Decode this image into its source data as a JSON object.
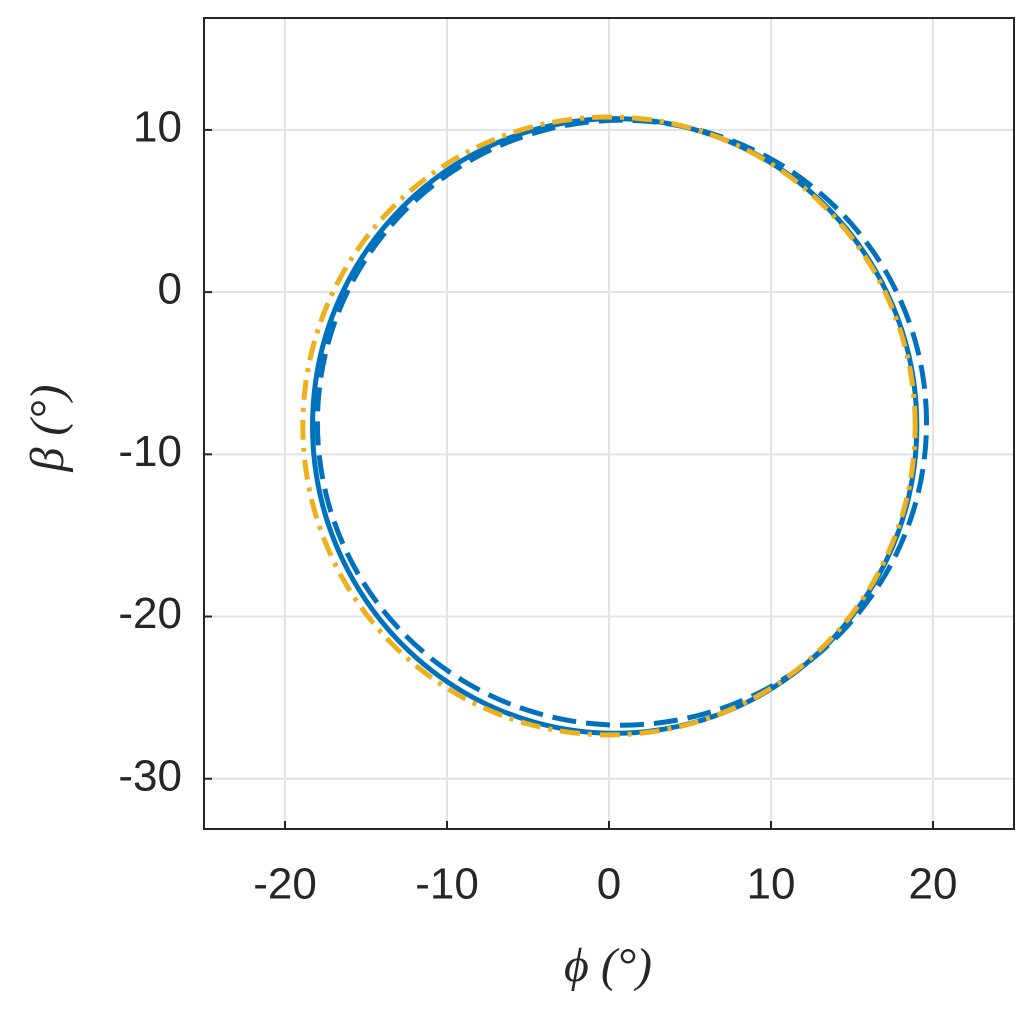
{
  "chart_data": {
    "type": "line",
    "x_label": "ϕ (°)",
    "y_label": "β (°)",
    "xlim": [
      -25,
      25
    ],
    "xticks": [
      -20,
      -10,
      0,
      10,
      20
    ],
    "ylim": [
      -33.1,
      16.9
    ],
    "yticks": [
      -30,
      -20,
      -10,
      0,
      10
    ],
    "grid": true,
    "series": [
      {
        "color": "#0072bd",
        "style": "solid",
        "x": [
          19.0,
          18.37,
          16.5,
          13.54,
          9.68,
          5.18,
          0.35,
          -4.48,
          -8.98,
          -12.84,
          -15.8,
          -17.67,
          -18.3,
          -17.67,
          -15.8,
          -12.84,
          -8.98,
          -4.48,
          0.35,
          5.18,
          9.68,
          13.54,
          16.5,
          18.37,
          19.0
        ],
        "values": [
          -8.25,
          -3.34,
          1.23,
          5.15,
          8.16,
          10.05,
          10.7,
          10.05,
          8.16,
          5.15,
          1.23,
          -3.34,
          -8.25,
          -13.16,
          -17.73,
          -21.65,
          -24.66,
          -26.55,
          -27.2,
          -26.55,
          -24.66,
          -21.65,
          -17.73,
          -13.16,
          -8.25
        ]
      },
      {
        "color": "#0072bd",
        "style": "dashed",
        "x": [
          19.6,
          18.96,
          17.08,
          14.09,
          10.2,
          5.67,
          0.8,
          -4.07,
          -8.6,
          -12.49,
          -15.48,
          -17.36,
          -18.0,
          -17.36,
          -15.48,
          -12.49,
          -8.6,
          -4.07,
          0.8,
          5.67,
          10.2,
          14.09,
          17.08,
          18.96,
          19.6
        ],
        "values": [
          -8.05,
          -3.22,
          1.28,
          5.14,
          8.1,
          9.96,
          10.6,
          9.96,
          8.1,
          5.14,
          1.28,
          -3.22,
          -8.05,
          -12.88,
          -17.38,
          -21.24,
          -24.2,
          -26.06,
          -26.7,
          -26.06,
          -24.2,
          -21.24,
          -17.38,
          -12.88,
          -8.05
        ]
      },
      {
        "color": "#edb120",
        "style": "dashdot",
        "x": [
          18.9,
          18.26,
          16.37,
          13.36,
          9.45,
          4.9,
          0,
          -4.9,
          -9.45,
          -13.36,
          -16.37,
          -18.26,
          -18.9,
          -18.26,
          -16.37,
          -13.36,
          -9.45,
          -4.9,
          0,
          4.9,
          9.45,
          13.36,
          16.37,
          18.26,
          18.9
        ],
        "values": [
          -8.25,
          -3.32,
          1.28,
          5.22,
          8.25,
          10.15,
          10.8,
          10.15,
          8.25,
          5.22,
          1.28,
          -3.32,
          -8.25,
          -13.18,
          -17.78,
          -21.72,
          -24.75,
          -26.65,
          -27.3,
          -26.65,
          -24.75,
          -21.72,
          -17.78,
          -13.18,
          -8.25
        ]
      }
    ]
  }
}
